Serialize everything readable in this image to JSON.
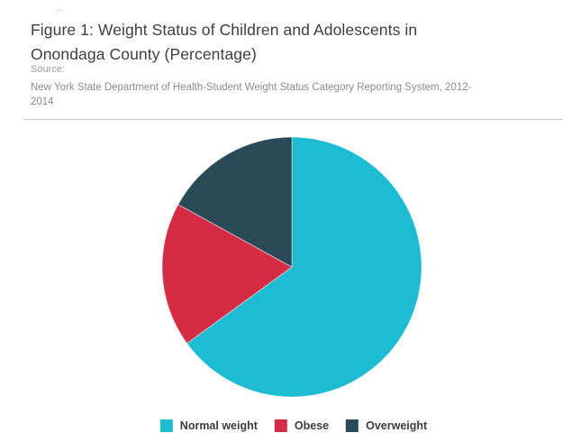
{
  "header": {
    "title_lines": [
      "Figure 1: Weight Status of Children and Adolescents in",
      "Onondaga County (Percentage)"
    ],
    "source_label": "Source:",
    "source_lines": [
      "New York State Department of Health-Student Weight Status Category Reporting System, 2012-",
      "2014"
    ]
  },
  "chart_data": {
    "type": "pie",
    "title": "Figure 1: Weight Status of Children and Adolescents in Onondaga County (Percentage)",
    "source": "New York State Department of Health-Student Weight Status Category Reporting System, 2012-2014",
    "values_are": "percent",
    "categories": [
      "Normal weight",
      "Obese",
      "Overweight"
    ],
    "values": [
      65,
      18,
      17
    ],
    "colors": [
      "#1dbcd2",
      "#d62b45",
      "#2a4a58"
    ],
    "start_angle_deg": 0,
    "direction": "clockwise",
    "legend_position": "bottom",
    "labels_shown_on_slices": false
  }
}
